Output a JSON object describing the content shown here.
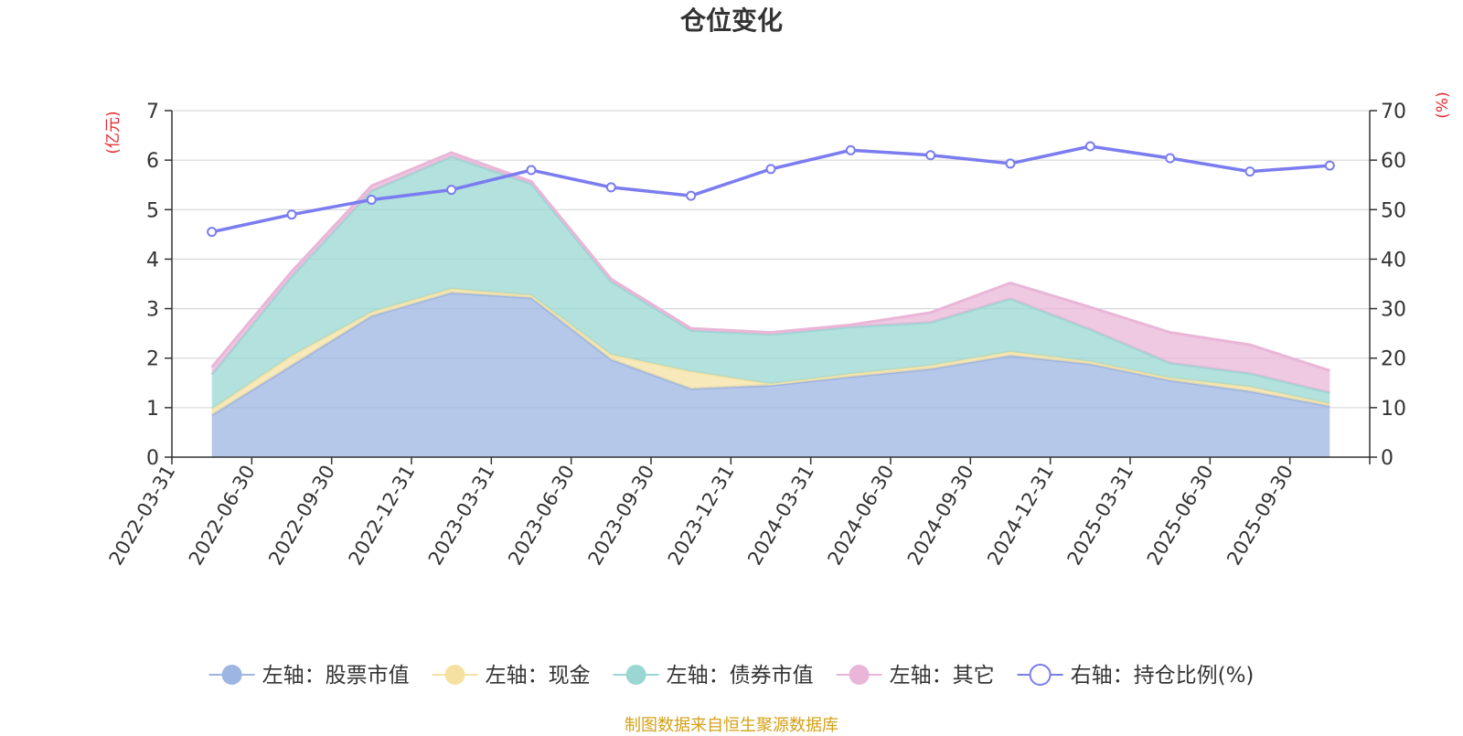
{
  "chart_data": {
    "type": "area",
    "title": "仓位变化",
    "left_axis_unit": "(亿元)",
    "right_axis_unit": "(%)",
    "left_ylim": [
      0,
      7
    ],
    "left_ticks": [
      "0",
      "1",
      "2",
      "3",
      "4",
      "5",
      "6",
      "7"
    ],
    "right_ylim": [
      0,
      70
    ],
    "right_ticks": [
      "0",
      "10",
      "20",
      "30",
      "40",
      "50",
      "60",
      "70"
    ],
    "categories": [
      "2022-03-31",
      "2022-06-30",
      "2022-09-30",
      "2022-12-31",
      "2023-03-31",
      "2023-06-30",
      "2023-09-30",
      "2023-12-31",
      "2024-03-31",
      "2024-06-30",
      "2024-09-30",
      "2024-12-31",
      "2025-03-31",
      "2025-06-30",
      "2025-09-30"
    ],
    "stacked_series": [
      {
        "name": "左轴：股票市值",
        "color": "#9db5e2",
        "values": [
          0.85,
          1.85,
          2.85,
          3.32,
          3.22,
          1.97,
          1.38,
          1.45,
          1.62,
          1.78,
          2.05,
          1.88,
          1.55,
          1.33,
          1.03
        ]
      },
      {
        "name": "左轴：现金",
        "color": "#f5e2a3",
        "values": [
          0.12,
          0.2,
          0.08,
          0.08,
          0.05,
          0.1,
          0.35,
          0.03,
          0.06,
          0.07,
          0.08,
          0.05,
          0.05,
          0.09,
          0.05
        ]
      },
      {
        "name": "左轴：债券市值",
        "color": "#9ad7d3",
        "values": [
          0.7,
          1.6,
          2.45,
          2.67,
          2.25,
          1.48,
          0.83,
          1.0,
          0.95,
          0.87,
          1.07,
          0.65,
          0.3,
          0.27,
          0.22
        ]
      },
      {
        "name": "左轴：其它",
        "color": "#e9b6d8",
        "values": [
          0.15,
          0.1,
          0.1,
          0.08,
          0.05,
          0.05,
          0.04,
          0.04,
          0.04,
          0.2,
          0.32,
          0.45,
          0.62,
          0.58,
          0.45
        ]
      }
    ],
    "line_series": {
      "name": "右轴：持仓比例(%)",
      "color": "#7a7cf0",
      "values": [
        45.5,
        49.0,
        52.0,
        54.0,
        58.0,
        54.5,
        52.8,
        58.2,
        62.0,
        61.0,
        59.3,
        62.8,
        60.4,
        57.7,
        58.9
      ]
    },
    "legend_position": "bottom",
    "grid": true,
    "source": "制图数据来自恒生聚源数据库"
  }
}
